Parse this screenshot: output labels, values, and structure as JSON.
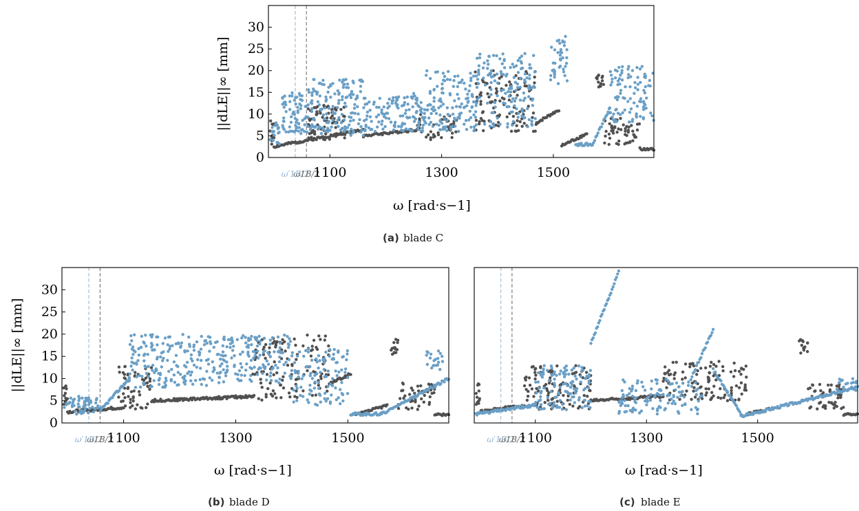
{
  "figure": {
    "colors": {
      "series_dark": "#505050",
      "series_light": "#6a9fc6",
      "marker_dark": "#666666",
      "marker_light": "#8fb3d1"
    },
    "markers": {
      "prime": "ω′1B/2",
      "base": "ω1B/2",
      "prime_value": 1038,
      "base_value": 1058
    }
  },
  "chart_data": [
    {
      "type": "scatter",
      "panel": "a",
      "caption_letter": "(a)",
      "caption_text": "blade C",
      "xlabel": "ω [rad·s−1]",
      "ylabel": "||dLE||∞ [mm]",
      "xlim": [
        990,
        1680
      ],
      "ylim": [
        0,
        35
      ],
      "xticks": [
        "1100",
        "1300",
        "1500"
      ],
      "yticks": [
        "0",
        "5",
        "10",
        "15",
        "20",
        "25",
        "30"
      ],
      "grid": false,
      "series": [
        {
          "color": "dark",
          "segments": [
            {
              "kind": "noise",
              "x0": 993,
              "x1": 1000,
              "base": 3,
              "amp": 6,
              "seed": 1,
              "n": 12
            },
            {
              "kind": "curve",
              "x0": 1000,
              "x1": 1160,
              "a": 2.5,
              "b": 6.5,
              "seed": 2
            },
            {
              "kind": "noise",
              "x0": 1060,
              "x1": 1130,
              "base": 4,
              "amp": 8,
              "seed": 3,
              "n": 80
            },
            {
              "kind": "curve",
              "x0": 1160,
              "x1": 1260,
              "a": 5,
              "b": 6.5,
              "seed": 4
            },
            {
              "kind": "noise",
              "x0": 1250,
              "x1": 1330,
              "base": 4,
              "amp": 6,
              "seed": 5,
              "n": 40
            },
            {
              "kind": "noise",
              "x0": 1360,
              "x1": 1470,
              "base": 6,
              "amp": 14,
              "seed": 6,
              "n": 110
            },
            {
              "kind": "curve",
              "x0": 1470,
              "x1": 1510,
              "a": 8,
              "b": 11,
              "seed": 7
            },
            {
              "kind": "curve",
              "x0": 1515,
              "x1": 1560,
              "a": 2.7,
              "b": 5.5,
              "seed": 8
            },
            {
              "kind": "noise",
              "x0": 1575,
              "x1": 1590,
              "base": 16,
              "amp": 3,
              "seed": 9,
              "n": 14
            },
            {
              "kind": "noise",
              "x0": 1590,
              "x1": 1655,
              "base": 3,
              "amp": 6,
              "seed": 10,
              "n": 50
            },
            {
              "kind": "curve",
              "x0": 1655,
              "x1": 1680,
              "a": 2,
              "b": 1.8,
              "seed": 11
            }
          ]
        },
        {
          "color": "light",
          "segments": [
            {
              "kind": "noise",
              "x0": 993,
              "x1": 1010,
              "base": 3,
              "amp": 5,
              "seed": 12,
              "n": 20
            },
            {
              "kind": "noise",
              "x0": 1015,
              "x1": 1060,
              "base": 5,
              "amp": 10,
              "seed": 13,
              "n": 70
            },
            {
              "kind": "noise",
              "x0": 1060,
              "x1": 1160,
              "base": 5,
              "amp": 13,
              "seed": 14,
              "n": 150
            },
            {
              "kind": "noise",
              "x0": 1160,
              "x1": 1270,
              "base": 6,
              "amp": 8,
              "seed": 15,
              "n": 120
            },
            {
              "kind": "curve",
              "x0": 1250,
              "x1": 1270,
              "a": 15,
              "b": 8,
              "seed": 16
            },
            {
              "kind": "noise",
              "x0": 1270,
              "x1": 1360,
              "base": 6,
              "amp": 14,
              "seed": 17,
              "n": 130
            },
            {
              "kind": "noise",
              "x0": 1360,
              "x1": 1470,
              "base": 7,
              "amp": 17,
              "seed": 18,
              "n": 150
            },
            {
              "kind": "noise",
              "x0": 1495,
              "x1": 1525,
              "base": 17,
              "amp": 11,
              "seed": 19,
              "n": 40
            },
            {
              "kind": "curve",
              "x0": 1540,
              "x1": 1570,
              "a": 3,
              "b": 3,
              "seed": 20
            },
            {
              "kind": "curve",
              "x0": 1570,
              "x1": 1600,
              "a": 3,
              "b": 11,
              "seed": 21
            },
            {
              "kind": "noise",
              "x0": 1600,
              "x1": 1680,
              "base": 8,
              "amp": 13,
              "seed": 22,
              "n": 100
            }
          ]
        }
      ]
    },
    {
      "type": "scatter",
      "panel": "b",
      "caption_letter": "(b)",
      "caption_text": "blade D",
      "xlabel": "ω [rad·s−1]",
      "ylabel": "||dLE||∞ [mm]",
      "xlim": [
        990,
        1680
      ],
      "ylim": [
        0,
        35
      ],
      "xticks": [
        "1100",
        "1300",
        "1500"
      ],
      "yticks": [
        "0",
        "5",
        "10",
        "15",
        "20",
        "25",
        "30"
      ],
      "grid": false,
      "series": [
        {
          "color": "dark",
          "segments": [
            {
              "kind": "noise",
              "x0": 993,
              "x1": 1000,
              "base": 4,
              "amp": 5,
              "seed": 31,
              "n": 12
            },
            {
              "kind": "curve",
              "x0": 1000,
              "x1": 1100,
              "a": 2.5,
              "b": 3.5,
              "seed": 32
            },
            {
              "kind": "noise",
              "x0": 1090,
              "x1": 1150,
              "base": 3,
              "amp": 10,
              "seed": 33,
              "n": 60
            },
            {
              "kind": "curve",
              "x0": 1150,
              "x1": 1330,
              "a": 5,
              "b": 6,
              "seed": 34
            },
            {
              "kind": "noise",
              "x0": 1330,
              "x1": 1470,
              "base": 5,
              "amp": 15,
              "seed": 35,
              "n": 130
            },
            {
              "kind": "curve",
              "x0": 1470,
              "x1": 1505,
              "a": 9,
              "b": 11,
              "seed": 36
            },
            {
              "kind": "curve",
              "x0": 1515,
              "x1": 1570,
              "a": 1.8,
              "b": 4,
              "seed": 37
            },
            {
              "kind": "noise",
              "x0": 1575,
              "x1": 1590,
              "base": 15,
              "amp": 4,
              "seed": 38,
              "n": 14
            },
            {
              "kind": "noise",
              "x0": 1590,
              "x1": 1655,
              "base": 3,
              "amp": 6,
              "seed": 39,
              "n": 50
            },
            {
              "kind": "curve",
              "x0": 1655,
              "x1": 1680,
              "a": 2,
              "b": 1.8,
              "seed": 40
            }
          ]
        },
        {
          "color": "light",
          "segments": [
            {
              "kind": "noise",
              "x0": 993,
              "x1": 1060,
              "base": 2,
              "amp": 4,
              "seed": 41,
              "n": 60
            },
            {
              "kind": "curve",
              "x0": 1060,
              "x1": 1110,
              "a": 3,
              "b": 10,
              "seed": 42
            },
            {
              "kind": "noise",
              "x0": 1110,
              "x1": 1250,
              "base": 8,
              "amp": 12,
              "seed": 43,
              "n": 170
            },
            {
              "kind": "noise",
              "x0": 1250,
              "x1": 1400,
              "base": 9,
              "amp": 11,
              "seed": 44,
              "n": 170
            },
            {
              "kind": "noise",
              "x0": 1400,
              "x1": 1500,
              "base": 4,
              "amp": 13,
              "seed": 45,
              "n": 110
            },
            {
              "kind": "curve",
              "x0": 1505,
              "x1": 1560,
              "a": 2,
              "b": 2,
              "seed": 46
            },
            {
              "kind": "curve",
              "x0": 1560,
              "x1": 1680,
              "a": 2,
              "b": 10,
              "seed": 47
            },
            {
              "kind": "noise",
              "x0": 1640,
              "x1": 1670,
              "base": 12,
              "amp": 5,
              "seed": 48,
              "n": 20
            }
          ]
        }
      ]
    },
    {
      "type": "scatter",
      "panel": "c",
      "caption_letter": "(c)",
      "caption_text": "blade E",
      "xlabel": "ω [rad·s−1]",
      "ylabel": "",
      "xlim": [
        990,
        1680
      ],
      "ylim": [
        0,
        35
      ],
      "xticks": [
        "1100",
        "1300",
        "1500"
      ],
      "yticks": [],
      "grid": false,
      "series": [
        {
          "color": "dark",
          "segments": [
            {
              "kind": "noise",
              "x0": 993,
              "x1": 1000,
              "base": 4,
              "amp": 5,
              "seed": 51,
              "n": 12
            },
            {
              "kind": "curve",
              "x0": 1000,
              "x1": 1080,
              "a": 2.5,
              "b": 4,
              "seed": 52
            },
            {
              "kind": "noise",
              "x0": 1080,
              "x1": 1200,
              "base": 3,
              "amp": 10,
              "seed": 53,
              "n": 110
            },
            {
              "kind": "curve",
              "x0": 1200,
              "x1": 1330,
              "a": 5,
              "b": 6,
              "seed": 54
            },
            {
              "kind": "noise",
              "x0": 1330,
              "x1": 1480,
              "base": 5,
              "amp": 9,
              "seed": 55,
              "n": 120
            },
            {
              "kind": "curve",
              "x0": 1480,
              "x1": 1520,
              "a": 2,
              "b": 3,
              "seed": 56
            },
            {
              "kind": "noise",
              "x0": 1575,
              "x1": 1590,
              "base": 15,
              "amp": 4,
              "seed": 57,
              "n": 14
            },
            {
              "kind": "noise",
              "x0": 1590,
              "x1": 1655,
              "base": 3,
              "amp": 6,
              "seed": 58,
              "n": 50
            },
            {
              "kind": "curve",
              "x0": 1655,
              "x1": 1680,
              "a": 2,
              "b": 1.8,
              "seed": 59
            }
          ]
        },
        {
          "color": "light",
          "segments": [
            {
              "kind": "curve",
              "x0": 993,
              "x1": 1100,
              "a": 2,
              "b": 4,
              "seed": 61
            },
            {
              "kind": "noise",
              "x0": 1100,
              "x1": 1200,
              "base": 3,
              "amp": 10,
              "seed": 62,
              "n": 120
            },
            {
              "kind": "curve",
              "x0": 1200,
              "x1": 1250,
              "a": 18,
              "b": 34,
              "seed": 63
            },
            {
              "kind": "noise",
              "x0": 1250,
              "x1": 1400,
              "base": 2,
              "amp": 8,
              "seed": 64,
              "n": 120
            },
            {
              "kind": "curve",
              "x0": 1380,
              "x1": 1420,
              "a": 10,
              "b": 21,
              "seed": 65
            },
            {
              "kind": "curve",
              "x0": 1420,
              "x1": 1470,
              "a": 12,
              "b": 2,
              "seed": 66
            },
            {
              "kind": "curve",
              "x0": 1470,
              "x1": 1680,
              "a": 1.5,
              "b": 8,
              "seed": 67
            },
            {
              "kind": "noise",
              "x0": 1640,
              "x1": 1680,
              "base": 7,
              "amp": 3,
              "seed": 68,
              "n": 20
            }
          ]
        }
      ]
    }
  ]
}
